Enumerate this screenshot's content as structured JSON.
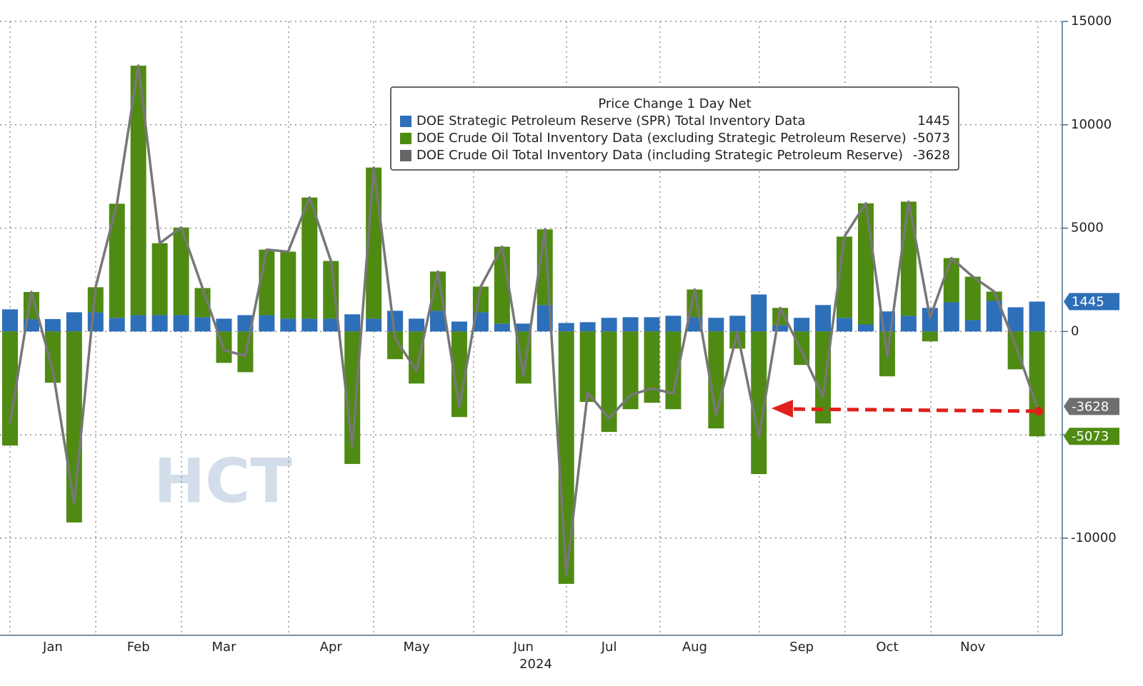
{
  "chart_data": {
    "type": "bar",
    "legend_title": "Price Change 1 Day Net",
    "xlabel": "2024",
    "watermark": "HCT",
    "stacked": true,
    "grid": true,
    "legend_position": "top",
    "categories": [
      null,
      null,
      "Jan",
      null,
      null,
      null,
      "Feb",
      null,
      null,
      null,
      "Mar",
      null,
      null,
      null,
      null,
      "Apr",
      null,
      null,
      null,
      "May",
      null,
      null,
      null,
      null,
      "Jun",
      null,
      null,
      null,
      "Jul",
      null,
      null,
      null,
      "Aug",
      null,
      null,
      null,
      null,
      "Sep",
      null,
      null,
      null,
      "Oct",
      null,
      null,
      null,
      "Nov",
      null,
      null,
      null
    ],
    "series": [
      {
        "name": "DOE Strategic Petroleum Reserve (SPR) Total Inventory Data",
        "color": "#2d6fb8",
        "kind": "bar",
        "values": [
          1070,
          600,
          600,
          930,
          930,
          660,
          790,
          790,
          790,
          690,
          620,
          790,
          790,
          620,
          620,
          620,
          830,
          620,
          1000,
          620,
          1000,
          480,
          930,
          380,
          380,
          1280,
          410,
          450,
          660,
          690,
          690,
          760,
          690,
          660,
          760,
          1790,
          310,
          660,
          1280,
          660,
          340,
          970,
          760,
          1140,
          1410,
          550,
          1480,
          1170,
          1445
        ]
      },
      {
        "name": "DOE Crude Oil Total Inventory Data (excluding Strategic Petroleum Reserve)",
        "color": "#4f8b12",
        "kind": "bar",
        "values": [
          -5520,
          1310,
          -2480,
          -9240,
          1210,
          5520,
          12070,
          3480,
          4240,
          1410,
          -1520,
          -1970,
          3170,
          3240,
          5860,
          2790,
          -6410,
          7310,
          -1340,
          -2520,
          1900,
          -4140,
          1240,
          3720,
          -2520,
          3660,
          -12210,
          -3410,
          -4860,
          -3760,
          -3450,
          -3760,
          1340,
          -4690,
          -830,
          -6900,
          830,
          -1620,
          -4450,
          3930,
          5860,
          -2170,
          5520,
          -480,
          2140,
          2100,
          450,
          -1830,
          -5073
        ]
      },
      {
        "name": "DOE Crude Oil Total Inventory Data (including Strategic Petroleum Reserve)",
        "color": "#777777",
        "kind": "line",
        "values": [
          -4450,
          1910,
          -1880,
          -8310,
          2140,
          6180,
          12860,
          4270,
          5030,
          2100,
          -900,
          -1180,
          3960,
          3860,
          6480,
          3410,
          -5580,
          7930,
          -340,
          -1900,
          2900,
          -3660,
          2170,
          4100,
          -2140,
          4940,
          -11800,
          -2960,
          -4200,
          -3070,
          -2760,
          -3000,
          2030,
          -4030,
          -70,
          -5110,
          1140,
          -960,
          -3170,
          4590,
          6200,
          -1200,
          6280,
          660,
          3550,
          2650,
          1930,
          -660,
          -3628
        ]
      }
    ],
    "ylim": [
      -14700,
      15000
    ],
    "yticks": [
      -10000,
      -5000,
      0,
      5000,
      10000,
      15000
    ]
  }
}
